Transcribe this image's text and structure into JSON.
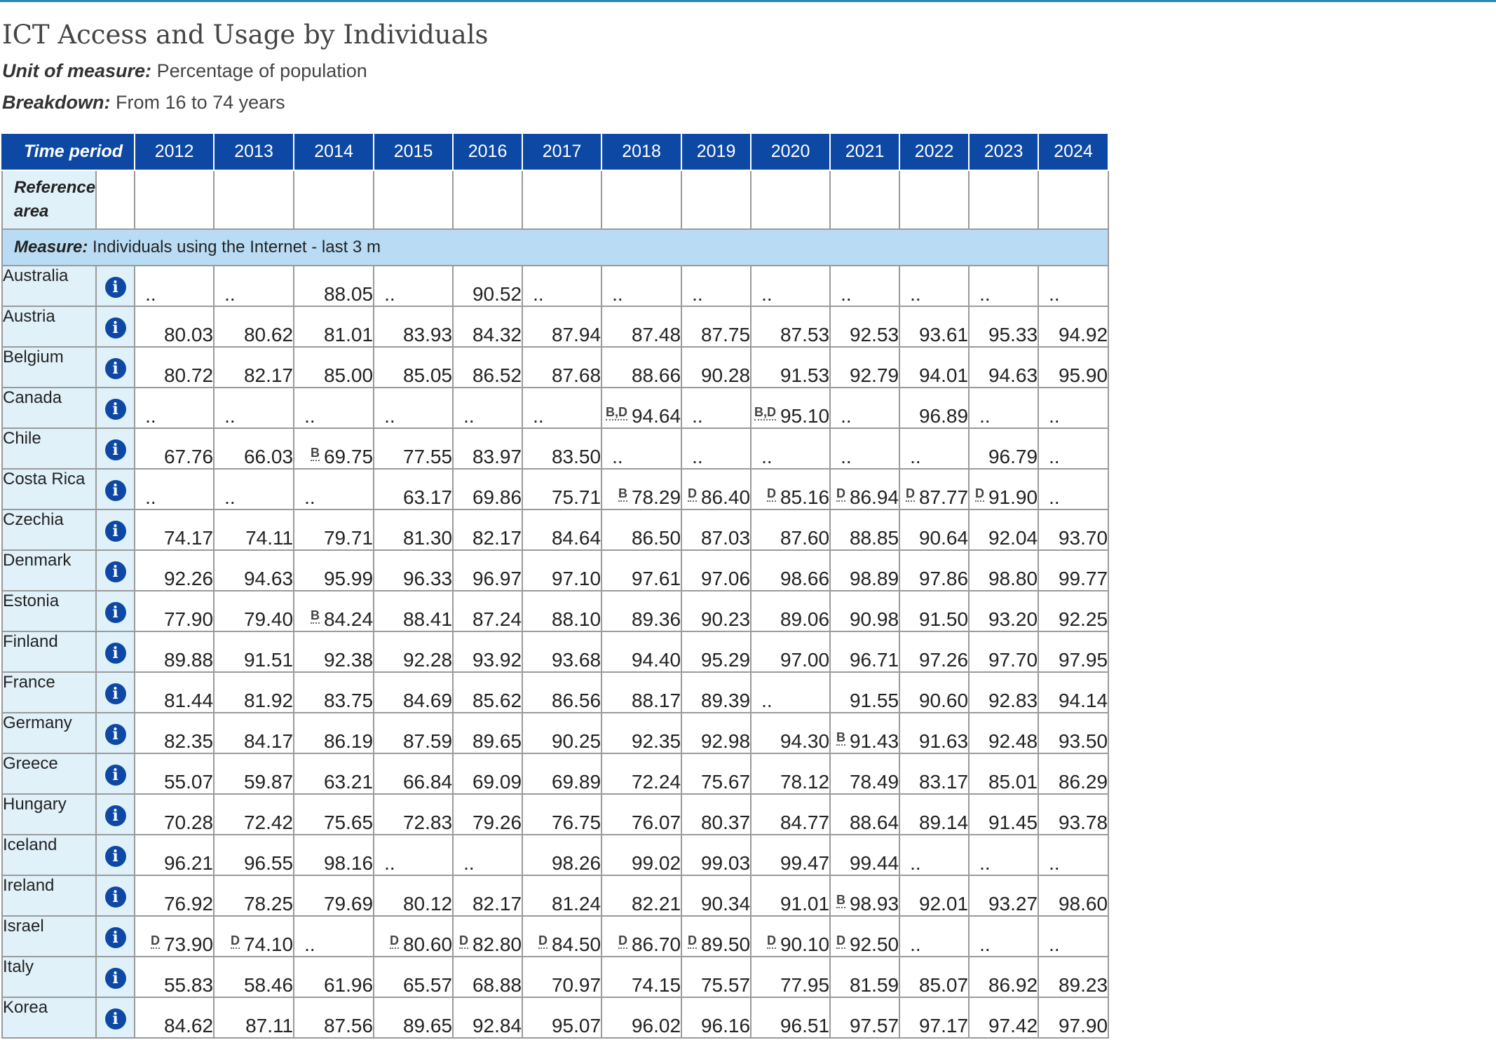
{
  "title": "ICT Access and Usage by Individuals",
  "unit_label": "Unit of measure:",
  "unit_value": "Percentage of population",
  "breakdown_label": "Breakdown:",
  "breakdown_value": "From 16 to 74 years",
  "table": {
    "time_period_label": "Time period",
    "reference_area_label": "Reference area",
    "measure_label": "Measure:",
    "measure_value": "Individuals using the Internet - last 3 m",
    "years": [
      "2012",
      "2013",
      "2014",
      "2015",
      "2016",
      "2017",
      "2018",
      "2019",
      "2020",
      "2021",
      "2022",
      "2023",
      "2024"
    ],
    "rows": [
      {
        "country": "Australia",
        "cells": [
          {
            "v": ".."
          },
          {
            "v": ".."
          },
          {
            "v": "88.05"
          },
          {
            "v": ".."
          },
          {
            "v": "90.52"
          },
          {
            "v": ".."
          },
          {
            "v": ".."
          },
          {
            "v": ".."
          },
          {
            "v": ".."
          },
          {
            "v": ".."
          },
          {
            "v": ".."
          },
          {
            "v": ".."
          },
          {
            "v": ".."
          }
        ]
      },
      {
        "country": "Austria",
        "cells": [
          {
            "v": "80.03"
          },
          {
            "v": "80.62"
          },
          {
            "v": "81.01"
          },
          {
            "v": "83.93"
          },
          {
            "v": "84.32"
          },
          {
            "v": "87.94"
          },
          {
            "v": "87.48"
          },
          {
            "v": "87.75"
          },
          {
            "v": "87.53"
          },
          {
            "v": "92.53"
          },
          {
            "v": "93.61"
          },
          {
            "v": "95.33"
          },
          {
            "v": "94.92"
          }
        ]
      },
      {
        "country": "Belgium",
        "cells": [
          {
            "v": "80.72"
          },
          {
            "v": "82.17"
          },
          {
            "v": "85.00"
          },
          {
            "v": "85.05"
          },
          {
            "v": "86.52"
          },
          {
            "v": "87.68"
          },
          {
            "v": "88.66"
          },
          {
            "v": "90.28"
          },
          {
            "v": "91.53"
          },
          {
            "v": "92.79"
          },
          {
            "v": "94.01"
          },
          {
            "v": "94.63"
          },
          {
            "v": "95.90"
          }
        ]
      },
      {
        "country": "Canada",
        "cells": [
          {
            "v": ".."
          },
          {
            "v": ".."
          },
          {
            "v": ".."
          },
          {
            "v": ".."
          },
          {
            "v": ".."
          },
          {
            "v": ".."
          },
          {
            "v": "94.64",
            "f": "B,D"
          },
          {
            "v": ".."
          },
          {
            "v": "95.10",
            "f": "B,D"
          },
          {
            "v": ".."
          },
          {
            "v": "96.89"
          },
          {
            "v": ".."
          },
          {
            "v": ".."
          }
        ]
      },
      {
        "country": "Chile",
        "cells": [
          {
            "v": "67.76"
          },
          {
            "v": "66.03"
          },
          {
            "v": "69.75",
            "f": "B"
          },
          {
            "v": "77.55"
          },
          {
            "v": "83.97"
          },
          {
            "v": "83.50"
          },
          {
            "v": ".."
          },
          {
            "v": ".."
          },
          {
            "v": ".."
          },
          {
            "v": ".."
          },
          {
            "v": ".."
          },
          {
            "v": "96.79"
          },
          {
            "v": ".."
          }
        ]
      },
      {
        "country": "Costa Rica",
        "cells": [
          {
            "v": ".."
          },
          {
            "v": ".."
          },
          {
            "v": ".."
          },
          {
            "v": "63.17"
          },
          {
            "v": "69.86"
          },
          {
            "v": "75.71"
          },
          {
            "v": "78.29",
            "f": "B"
          },
          {
            "v": "86.40",
            "f": "D"
          },
          {
            "v": "85.16",
            "f": "D"
          },
          {
            "v": "86.94",
            "f": "D"
          },
          {
            "v": "87.77",
            "f": "D"
          },
          {
            "v": "91.90",
            "f": "D"
          },
          {
            "v": ".."
          }
        ]
      },
      {
        "country": "Czechia",
        "cells": [
          {
            "v": "74.17"
          },
          {
            "v": "74.11"
          },
          {
            "v": "79.71"
          },
          {
            "v": "81.30"
          },
          {
            "v": "82.17"
          },
          {
            "v": "84.64"
          },
          {
            "v": "86.50"
          },
          {
            "v": "87.03"
          },
          {
            "v": "87.60"
          },
          {
            "v": "88.85"
          },
          {
            "v": "90.64"
          },
          {
            "v": "92.04"
          },
          {
            "v": "93.70"
          }
        ]
      },
      {
        "country": "Denmark",
        "cells": [
          {
            "v": "92.26"
          },
          {
            "v": "94.63"
          },
          {
            "v": "95.99"
          },
          {
            "v": "96.33"
          },
          {
            "v": "96.97"
          },
          {
            "v": "97.10"
          },
          {
            "v": "97.61"
          },
          {
            "v": "97.06"
          },
          {
            "v": "98.66"
          },
          {
            "v": "98.89"
          },
          {
            "v": "97.86"
          },
          {
            "v": "98.80"
          },
          {
            "v": "99.77"
          }
        ]
      },
      {
        "country": "Estonia",
        "cells": [
          {
            "v": "77.90"
          },
          {
            "v": "79.40"
          },
          {
            "v": "84.24",
            "f": "B"
          },
          {
            "v": "88.41"
          },
          {
            "v": "87.24"
          },
          {
            "v": "88.10"
          },
          {
            "v": "89.36"
          },
          {
            "v": "90.23"
          },
          {
            "v": "89.06"
          },
          {
            "v": "90.98"
          },
          {
            "v": "91.50"
          },
          {
            "v": "93.20"
          },
          {
            "v": "92.25"
          }
        ]
      },
      {
        "country": "Finland",
        "cells": [
          {
            "v": "89.88"
          },
          {
            "v": "91.51"
          },
          {
            "v": "92.38"
          },
          {
            "v": "92.28"
          },
          {
            "v": "93.92"
          },
          {
            "v": "93.68"
          },
          {
            "v": "94.40"
          },
          {
            "v": "95.29"
          },
          {
            "v": "97.00"
          },
          {
            "v": "96.71"
          },
          {
            "v": "97.26"
          },
          {
            "v": "97.70"
          },
          {
            "v": "97.95"
          }
        ]
      },
      {
        "country": "France",
        "cells": [
          {
            "v": "81.44"
          },
          {
            "v": "81.92"
          },
          {
            "v": "83.75"
          },
          {
            "v": "84.69"
          },
          {
            "v": "85.62"
          },
          {
            "v": "86.56"
          },
          {
            "v": "88.17"
          },
          {
            "v": "89.39"
          },
          {
            "v": ".."
          },
          {
            "v": "91.55"
          },
          {
            "v": "90.60"
          },
          {
            "v": "92.83"
          },
          {
            "v": "94.14"
          }
        ]
      },
      {
        "country": "Germany",
        "cells": [
          {
            "v": "82.35"
          },
          {
            "v": "84.17"
          },
          {
            "v": "86.19"
          },
          {
            "v": "87.59"
          },
          {
            "v": "89.65"
          },
          {
            "v": "90.25"
          },
          {
            "v": "92.35"
          },
          {
            "v": "92.98"
          },
          {
            "v": "94.30"
          },
          {
            "v": "91.43",
            "f": "B"
          },
          {
            "v": "91.63"
          },
          {
            "v": "92.48"
          },
          {
            "v": "93.50"
          }
        ]
      },
      {
        "country": "Greece",
        "cells": [
          {
            "v": "55.07"
          },
          {
            "v": "59.87"
          },
          {
            "v": "63.21"
          },
          {
            "v": "66.84"
          },
          {
            "v": "69.09"
          },
          {
            "v": "69.89"
          },
          {
            "v": "72.24"
          },
          {
            "v": "75.67"
          },
          {
            "v": "78.12"
          },
          {
            "v": "78.49"
          },
          {
            "v": "83.17"
          },
          {
            "v": "85.01"
          },
          {
            "v": "86.29"
          }
        ]
      },
      {
        "country": "Hungary",
        "cells": [
          {
            "v": "70.28"
          },
          {
            "v": "72.42"
          },
          {
            "v": "75.65"
          },
          {
            "v": "72.83"
          },
          {
            "v": "79.26"
          },
          {
            "v": "76.75"
          },
          {
            "v": "76.07"
          },
          {
            "v": "80.37"
          },
          {
            "v": "84.77"
          },
          {
            "v": "88.64"
          },
          {
            "v": "89.14"
          },
          {
            "v": "91.45"
          },
          {
            "v": "93.78"
          }
        ]
      },
      {
        "country": "Iceland",
        "cells": [
          {
            "v": "96.21"
          },
          {
            "v": "96.55"
          },
          {
            "v": "98.16"
          },
          {
            "v": ".."
          },
          {
            "v": ".."
          },
          {
            "v": "98.26"
          },
          {
            "v": "99.02"
          },
          {
            "v": "99.03"
          },
          {
            "v": "99.47"
          },
          {
            "v": "99.44"
          },
          {
            "v": ".."
          },
          {
            "v": ".."
          },
          {
            "v": ".."
          }
        ]
      },
      {
        "country": "Ireland",
        "cells": [
          {
            "v": "76.92"
          },
          {
            "v": "78.25"
          },
          {
            "v": "79.69"
          },
          {
            "v": "80.12"
          },
          {
            "v": "82.17"
          },
          {
            "v": "81.24"
          },
          {
            "v": "82.21"
          },
          {
            "v": "90.34"
          },
          {
            "v": "91.01"
          },
          {
            "v": "98.93",
            "f": "B"
          },
          {
            "v": "92.01"
          },
          {
            "v": "93.27"
          },
          {
            "v": "98.60"
          }
        ]
      },
      {
        "country": "Israel",
        "cells": [
          {
            "v": "73.90",
            "f": "D"
          },
          {
            "v": "74.10",
            "f": "D"
          },
          {
            "v": ".."
          },
          {
            "v": "80.60",
            "f": "D"
          },
          {
            "v": "82.80",
            "f": "D"
          },
          {
            "v": "84.50",
            "f": "D"
          },
          {
            "v": "86.70",
            "f": "D"
          },
          {
            "v": "89.50",
            "f": "D"
          },
          {
            "v": "90.10",
            "f": "D"
          },
          {
            "v": "92.50",
            "f": "D"
          },
          {
            "v": ".."
          },
          {
            "v": ".."
          },
          {
            "v": ".."
          }
        ]
      },
      {
        "country": "Italy",
        "cells": [
          {
            "v": "55.83"
          },
          {
            "v": "58.46"
          },
          {
            "v": "61.96"
          },
          {
            "v": "65.57"
          },
          {
            "v": "68.88"
          },
          {
            "v": "70.97"
          },
          {
            "v": "74.15"
          },
          {
            "v": "75.57"
          },
          {
            "v": "77.95"
          },
          {
            "v": "81.59"
          },
          {
            "v": "85.07"
          },
          {
            "v": "86.92"
          },
          {
            "v": "89.23"
          }
        ]
      },
      {
        "country": "Korea",
        "cells": [
          {
            "v": "84.62"
          },
          {
            "v": "87.11"
          },
          {
            "v": "87.56"
          },
          {
            "v": "89.65"
          },
          {
            "v": "92.84"
          },
          {
            "v": "95.07"
          },
          {
            "v": "96.02"
          },
          {
            "v": "96.16"
          },
          {
            "v": "96.51"
          },
          {
            "v": "97.57"
          },
          {
            "v": "97.17"
          },
          {
            "v": "97.42"
          },
          {
            "v": "97.90"
          }
        ]
      }
    ]
  }
}
